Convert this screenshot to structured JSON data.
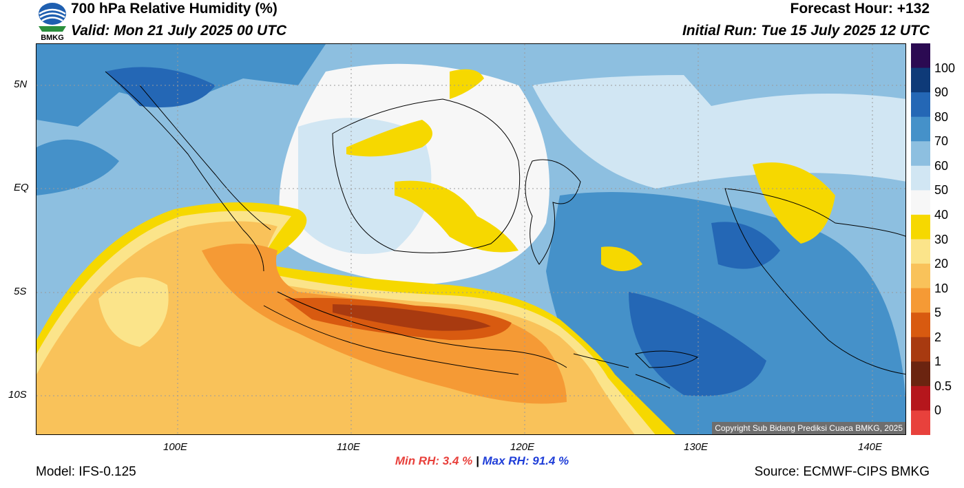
{
  "header": {
    "title": "700 hPa Relative Humidity (%)",
    "valid": "Valid: Mon 21 July 2025 00 UTC",
    "forecast_hour": "Forecast Hour: +132",
    "initial_run": "Initial Run: Tue 15 July 2025 12 UTC"
  },
  "logo": {
    "text": "BMKG",
    "icon": "bmkg-logo"
  },
  "map": {
    "lat_ticks": [
      "5N",
      "EQ",
      "5S",
      "10S"
    ],
    "lon_ticks": [
      "100E",
      "110E",
      "120E",
      "130E",
      "140E"
    ],
    "copyright": "Copyright Sub Bidang Prediksi Cuaca BMKG, 2025"
  },
  "colorbar": {
    "labels": [
      "100",
      "90",
      "80",
      "70",
      "60",
      "50",
      "40",
      "30",
      "20",
      "10",
      "5",
      "2",
      "1",
      "0.5",
      "0"
    ],
    "colors": [
      "#2b0a52",
      "#0e3a78",
      "#2467b5",
      "#4591c9",
      "#8dbfe0",
      "#d1e6f3",
      "#f7f7f7",
      "#f6d800",
      "#fbe48a",
      "#f9c25a",
      "#f59a35",
      "#d85a10",
      "#a83a10",
      "#6b2410",
      "#b5161c",
      "#e8413c"
    ]
  },
  "stats": {
    "min_label": "Min RH:",
    "min_value": "3.4 %",
    "sep": "|",
    "max_label": "Max RH:",
    "max_value": "91.4 %"
  },
  "footer": {
    "model": "Model: IFS-0.125",
    "source": "Source: ECMWF-CIPS BMKG"
  }
}
